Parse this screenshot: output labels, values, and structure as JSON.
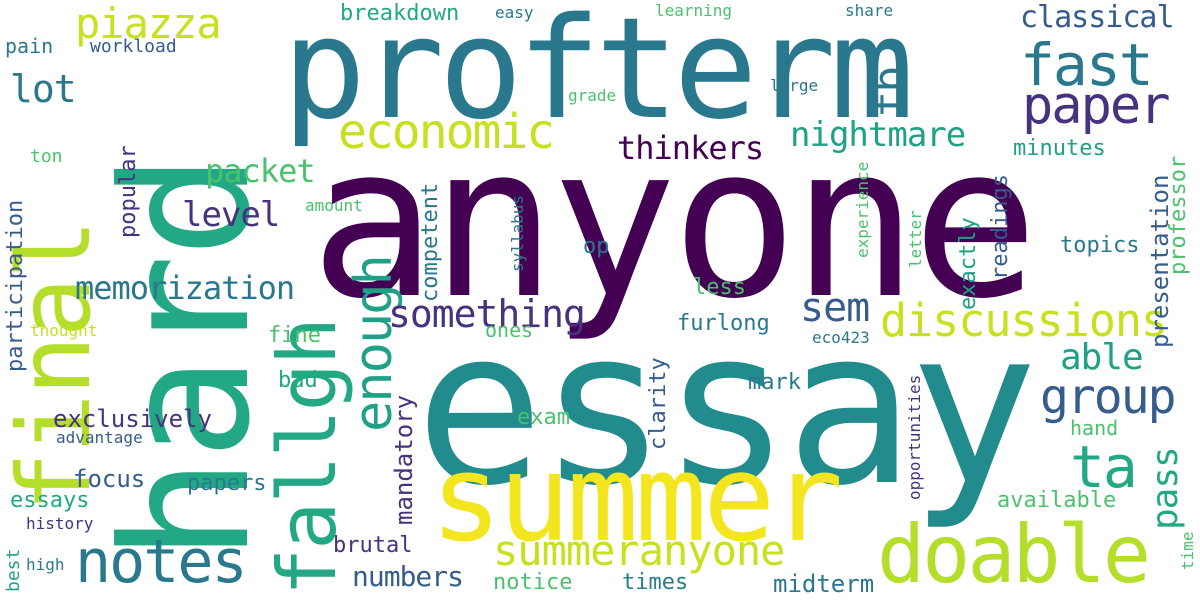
{
  "words": {
    "anyone": "anyone",
    "essay": "essay",
    "profterm": "profterm",
    "hard": "hard",
    "summer": "summer",
    "final": "final",
    "fallgh": "fallgh",
    "doable": "doable",
    "economic": "economic",
    "paper": "paper",
    "fast": "fast",
    "notes": "notes",
    "summeranyone": "summeranyone",
    "discussions": "discussions",
    "enough": "enough",
    "piazza": "piazza",
    "group": "group",
    "something": "something",
    "nightmare": "nightmare",
    "sem": "sem",
    "memorization": "memorization",
    "ta": "ta",
    "fb": "fb",
    "classical": "classical",
    "thinkers": "thinkers",
    "level": "level",
    "lot": "lot",
    "packet": "packet",
    "able": "able",
    "pass": "pass",
    "numbers": "numbers",
    "exclusively": "exclusively",
    "presentation": "presentation",
    "participation": "participation",
    "breakdown": "breakdown",
    "focus": "focus",
    "papers": "papers",
    "essays": "essays",
    "mandatory": "mandatory",
    "brutal": "brutal",
    "midterm": "midterm",
    "times": "times",
    "notice": "notice",
    "readings": "readings",
    "exactly": "exactly",
    "topics": "topics",
    "professor": "professor",
    "competent": "competent",
    "popular": "popular",
    "clarity": "clarity",
    "mark": "mark",
    "furlong": "furlong",
    "exam": "exam",
    "bad": "bad",
    "fine": "fine",
    "ones": "ones",
    "op": "op",
    "less": "less",
    "minutes": "minutes",
    "available": "available",
    "hand": "hand",
    "pain": "pain",
    "workload": "workload",
    "ton": "ton",
    "amount": "amount",
    "easy": "easy",
    "learning": "learning",
    "share": "share",
    "large": "large",
    "grade": "grade",
    "syllabus": "syllabus",
    "experience": "experience",
    "letter": "letter",
    "opportunities": "opportunities",
    "thought": "thought",
    "eco423": "eco423",
    "advantage": "advantage",
    "history": "history",
    "high": "high",
    "best": "best",
    "time": "time"
  },
  "palette": {
    "dark_purple": "#440154",
    "indigo": "#46327e",
    "slate_blue": "#365c8d",
    "blue_teal": "#277f8e",
    "teal": "#1fa187",
    "green": "#4ac16d",
    "light_green": "#a0da39",
    "yellow": "#fde725",
    "lime": "#c8e020"
  }
}
